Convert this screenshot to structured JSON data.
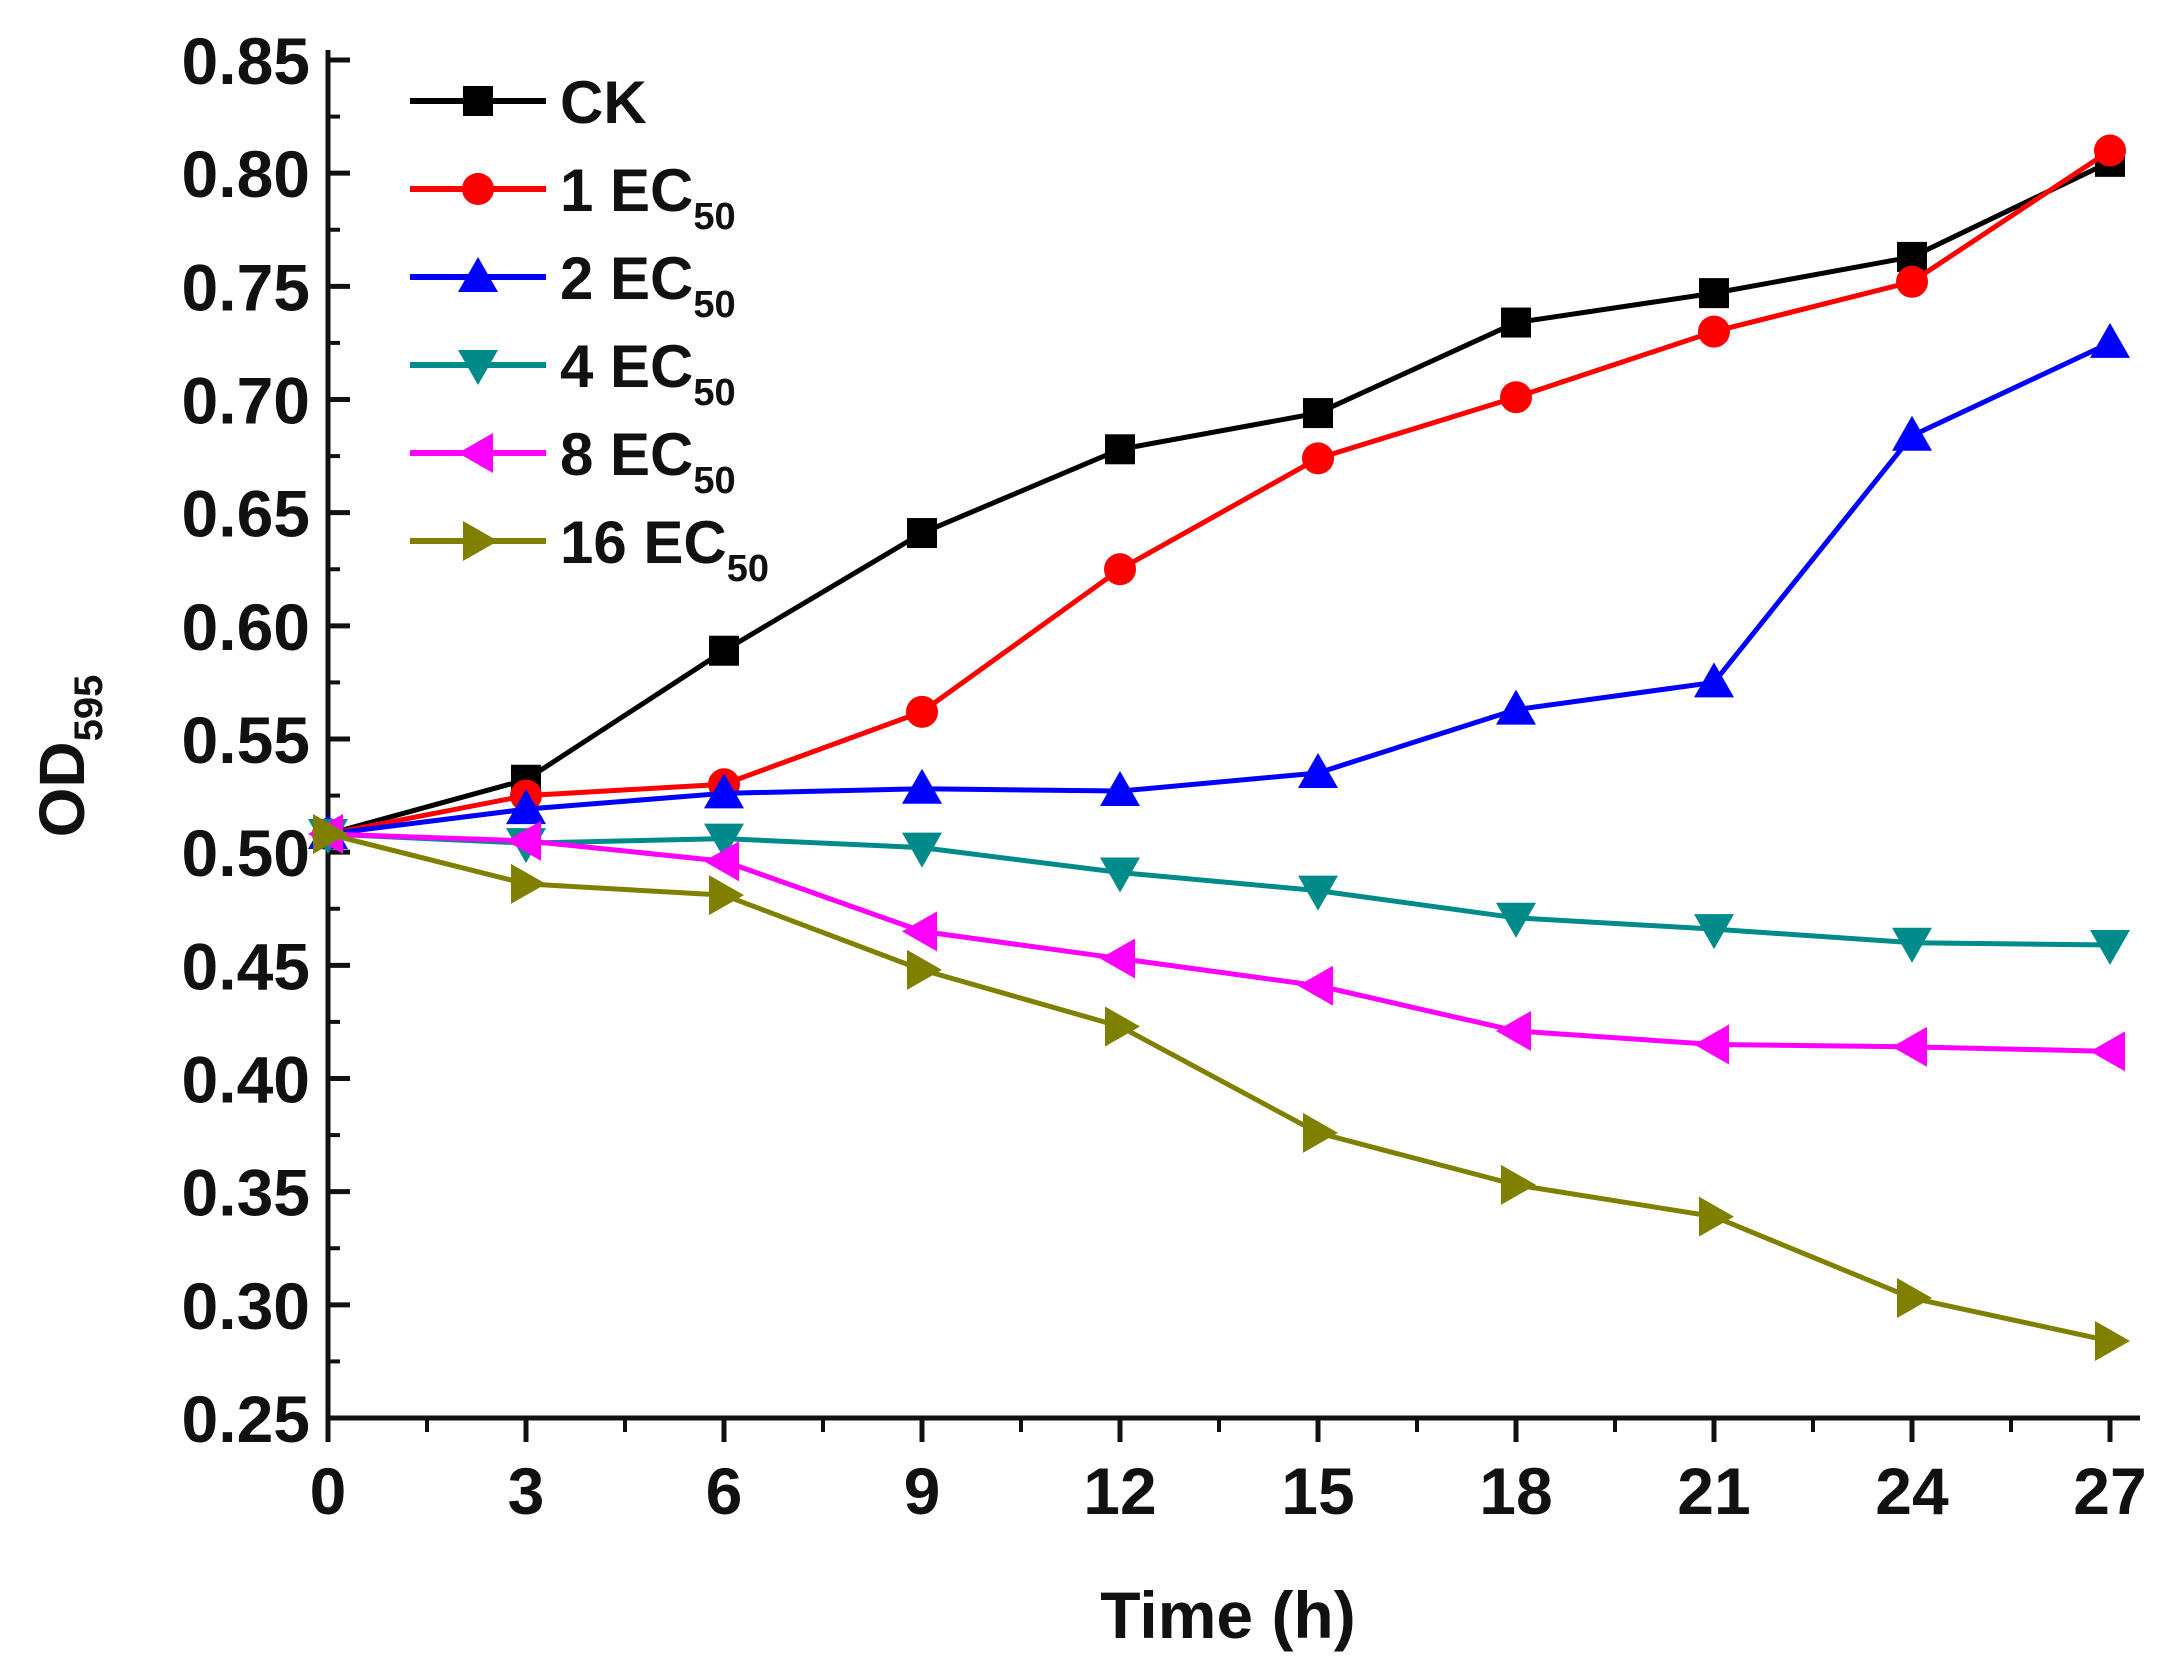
{
  "chart_data": {
    "type": "line",
    "xlabel": "Time (h)",
    "ylabel": {
      "main": "OD",
      "sub": "595"
    },
    "xlim": [
      0,
      27
    ],
    "ylim": [
      0.25,
      0.85
    ],
    "x_ticks": [
      "0",
      "3",
      "6",
      "9",
      "12",
      "15",
      "18",
      "21",
      "24",
      "27"
    ],
    "y_ticks": [
      "0.25",
      "0.30",
      "0.35",
      "0.40",
      "0.45",
      "0.50",
      "0.55",
      "0.60",
      "0.65",
      "0.70",
      "0.75",
      "0.80",
      "0.85"
    ],
    "grid": false,
    "legend": "top-left",
    "x": [
      0,
      3,
      6,
      9,
      12,
      15,
      18,
      21,
      24,
      27
    ],
    "series": [
      {
        "name": "CK",
        "name_sub": "",
        "color": "#000000",
        "marker": "square",
        "values": [
          0.508,
          0.532,
          0.589,
          0.641,
          0.678,
          0.694,
          0.734,
          0.747,
          0.763,
          0.805
        ]
      },
      {
        "name": "1 EC",
        "name_sub": "50",
        "color": "#ff0000",
        "marker": "circle",
        "values": [
          0.508,
          0.525,
          0.53,
          0.562,
          0.625,
          0.674,
          0.701,
          0.73,
          0.752,
          0.81
        ]
      },
      {
        "name": "2 EC",
        "name_sub": "50",
        "color": "#0000ff",
        "marker": "triangle-up",
        "values": [
          0.508,
          0.519,
          0.526,
          0.528,
          0.527,
          0.535,
          0.563,
          0.575,
          0.684,
          0.725
        ]
      },
      {
        "name": "4 EC",
        "name_sub": "50",
        "color": "#008b8b",
        "marker": "triangle-down",
        "values": [
          0.508,
          0.504,
          0.506,
          0.502,
          0.491,
          0.483,
          0.471,
          0.466,
          0.46,
          0.459
        ]
      },
      {
        "name": "8 EC",
        "name_sub": "50",
        "color": "#ff00ff",
        "marker": "triangle-left",
        "values": [
          0.508,
          0.505,
          0.496,
          0.465,
          0.453,
          0.441,
          0.421,
          0.415,
          0.414,
          0.412
        ]
      },
      {
        "name": "16 EC",
        "name_sub": "50",
        "color": "#808000",
        "marker": "triangle-right",
        "values": [
          0.508,
          0.486,
          0.481,
          0.448,
          0.423,
          0.376,
          0.353,
          0.339,
          0.303,
          0.284
        ]
      }
    ]
  }
}
